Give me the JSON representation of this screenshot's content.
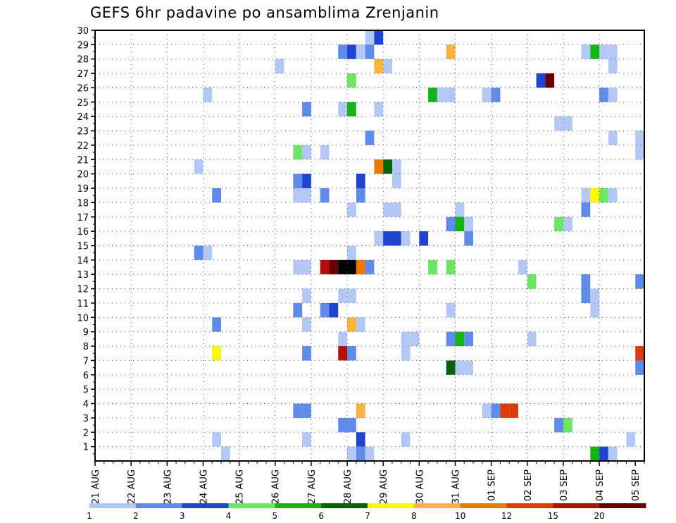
{
  "chart_data": {
    "type": "heatmap",
    "title": "GEFS 6hr padavine po ansamblima Zrenjanin",
    "y_ticks": [
      1,
      2,
      3,
      4,
      5,
      6,
      7,
      8,
      9,
      10,
      11,
      12,
      13,
      14,
      15,
      16,
      17,
      18,
      19,
      20,
      21,
      22,
      23,
      24,
      25,
      26,
      27,
      28,
      29,
      30
    ],
    "ylim": [
      0,
      30
    ],
    "x_ticks": [
      "21 AUG",
      "22 AUG",
      "23 AUG",
      "24 AUG",
      "25 AUG",
      "26 AUG",
      "27 AUG",
      "28 AUG",
      "29 AUG",
      "30 AUG",
      "31 AUG",
      "01 SEP",
      "02 SEP",
      "03 SEP",
      "04 SEP",
      "05 SEP"
    ],
    "xlim": [
      0,
      15.25
    ],
    "grid": true,
    "colorbar": {
      "levels": [
        "1",
        "2",
        "3",
        "4",
        "5",
        "6",
        "7",
        "8",
        "10",
        "12",
        "15",
        "20"
      ],
      "colors": [
        "#b4c8f5",
        "#5f8ceb",
        "#1e44d2",
        "#6ee664",
        "#14b414",
        "#066406",
        "#fafa00",
        "#fab43c",
        "#f07800",
        "#dc3c0a",
        "#b40f05",
        "#640000"
      ]
    },
    "cells": [
      [
        7.5,
        30,
        1
      ],
      [
        7.75,
        30,
        3
      ],
      [
        6.75,
        29,
        2
      ],
      [
        7,
        29,
        3
      ],
      [
        7.25,
        29,
        1
      ],
      [
        7.5,
        29,
        2
      ],
      [
        9.75,
        29,
        8
      ],
      [
        13.5,
        29,
        1
      ],
      [
        13.75,
        29,
        5
      ],
      [
        14,
        29,
        1
      ],
      [
        14.25,
        29,
        1
      ],
      [
        5,
        28,
        1
      ],
      [
        7.75,
        28,
        8
      ],
      [
        8,
        28,
        1
      ],
      [
        14.25,
        28,
        1
      ],
      [
        7,
        27,
        4
      ],
      [
        12.25,
        27,
        3
      ],
      [
        12.5,
        27,
        12
      ],
      [
        3,
        26,
        1
      ],
      [
        9.25,
        26,
        5
      ],
      [
        9.5,
        26,
        1
      ],
      [
        9.75,
        26,
        1
      ],
      [
        10.75,
        26,
        1
      ],
      [
        11,
        26,
        2
      ],
      [
        14,
        26,
        2
      ],
      [
        14.25,
        26,
        1
      ],
      [
        5.75,
        25,
        2
      ],
      [
        6.75,
        25,
        1
      ],
      [
        7,
        25,
        5
      ],
      [
        7.75,
        25,
        1
      ],
      [
        12.75,
        24,
        1
      ],
      [
        13,
        24,
        1
      ],
      [
        7.5,
        23,
        2
      ],
      [
        14.25,
        23,
        1
      ],
      [
        15,
        23,
        1
      ],
      [
        5.5,
        22,
        4
      ],
      [
        5.75,
        22,
        1
      ],
      [
        6.25,
        22,
        1
      ],
      [
        15,
        22,
        1
      ],
      [
        2.75,
        21,
        1
      ],
      [
        7.75,
        21,
        9
      ],
      [
        8,
        21,
        6
      ],
      [
        8.25,
        21,
        1
      ],
      [
        5.5,
        20,
        2
      ],
      [
        5.75,
        20,
        3
      ],
      [
        7.25,
        20,
        3
      ],
      [
        8.25,
        20,
        1
      ],
      [
        3.25,
        19,
        2
      ],
      [
        5.5,
        19,
        1
      ],
      [
        5.75,
        19,
        1
      ],
      [
        6.25,
        19,
        2
      ],
      [
        7.25,
        19,
        2
      ],
      [
        13.5,
        19,
        1
      ],
      [
        13.75,
        19,
        7
      ],
      [
        14,
        19,
        4
      ],
      [
        14.25,
        19,
        1
      ],
      [
        7,
        18,
        1
      ],
      [
        8,
        18,
        1
      ],
      [
        8.25,
        18,
        1
      ],
      [
        10,
        18,
        1
      ],
      [
        13.5,
        18,
        2
      ],
      [
        9.75,
        17,
        2
      ],
      [
        10,
        17,
        5
      ],
      [
        10.25,
        17,
        1
      ],
      [
        12.75,
        17,
        4
      ],
      [
        13,
        17,
        1
      ],
      [
        7.75,
        16,
        1
      ],
      [
        8,
        16,
        3
      ],
      [
        8.25,
        16,
        3
      ],
      [
        8.5,
        16,
        1
      ],
      [
        9,
        16,
        3
      ],
      [
        10.25,
        16,
        2
      ],
      [
        2.75,
        15,
        2
      ],
      [
        3,
        15,
        1
      ],
      [
        7,
        15,
        1
      ],
      [
        5.5,
        14,
        1
      ],
      [
        5.75,
        14,
        1
      ],
      [
        6.25,
        14,
        11
      ],
      [
        6.5,
        14,
        12
      ],
      [
        6.75,
        14,
        13
      ],
      [
        7,
        14,
        14
      ],
      [
        7.25,
        14,
        9
      ],
      [
        7.5,
        14,
        2
      ],
      [
        9.25,
        14,
        4
      ],
      [
        9.75,
        14,
        4
      ],
      [
        11.75,
        14,
        1
      ],
      [
        12,
        13,
        4
      ],
      [
        13.5,
        13,
        2
      ],
      [
        15,
        13,
        2
      ],
      [
        5.75,
        12,
        1
      ],
      [
        6.75,
        12,
        1
      ],
      [
        7,
        12,
        1
      ],
      [
        13.5,
        12,
        2
      ],
      [
        13.75,
        12,
        1
      ],
      [
        5.5,
        11,
        2
      ],
      [
        6.25,
        11,
        2
      ],
      [
        6.5,
        11,
        3
      ],
      [
        9.75,
        11,
        1
      ],
      [
        13.75,
        11,
        1
      ],
      [
        3.25,
        10,
        2
      ],
      [
        5.75,
        10,
        1
      ],
      [
        7,
        10,
        8
      ],
      [
        7.25,
        10,
        1
      ],
      [
        6.75,
        9,
        1
      ],
      [
        8.5,
        9,
        1
      ],
      [
        8.75,
        9,
        1
      ],
      [
        9.75,
        9,
        2
      ],
      [
        10,
        9,
        5
      ],
      [
        10.25,
        9,
        2
      ],
      [
        12,
        9,
        1
      ],
      [
        3.25,
        8,
        7
      ],
      [
        5.75,
        8,
        2
      ],
      [
        6.75,
        8,
        11
      ],
      [
        7,
        8,
        2
      ],
      [
        8.5,
        8,
        1
      ],
      [
        15,
        8,
        10
      ],
      [
        9.75,
        7,
        6
      ],
      [
        10,
        7,
        1
      ],
      [
        10.25,
        7,
        1
      ],
      [
        15,
        7,
        2
      ],
      [
        5.5,
        4,
        2
      ],
      [
        5.75,
        4,
        2
      ],
      [
        7.25,
        4,
        8
      ],
      [
        10.75,
        4,
        1
      ],
      [
        11,
        4,
        2
      ],
      [
        11.25,
        4,
        10
      ],
      [
        11.5,
        4,
        10
      ],
      [
        6.75,
        3,
        2
      ],
      [
        7,
        3,
        2
      ],
      [
        12.75,
        3,
        2
      ],
      [
        13,
        3,
        4
      ],
      [
        3.25,
        2,
        1
      ],
      [
        5.75,
        2,
        1
      ],
      [
        7.25,
        2,
        3
      ],
      [
        8.5,
        2,
        1
      ],
      [
        14.75,
        2,
        1
      ],
      [
        3.5,
        1,
        1
      ],
      [
        7,
        1,
        1
      ],
      [
        7.25,
        1,
        2
      ],
      [
        7.5,
        1,
        1
      ],
      [
        13.75,
        1,
        5
      ],
      [
        14,
        1,
        3
      ],
      [
        14.25,
        1,
        1
      ]
    ]
  }
}
